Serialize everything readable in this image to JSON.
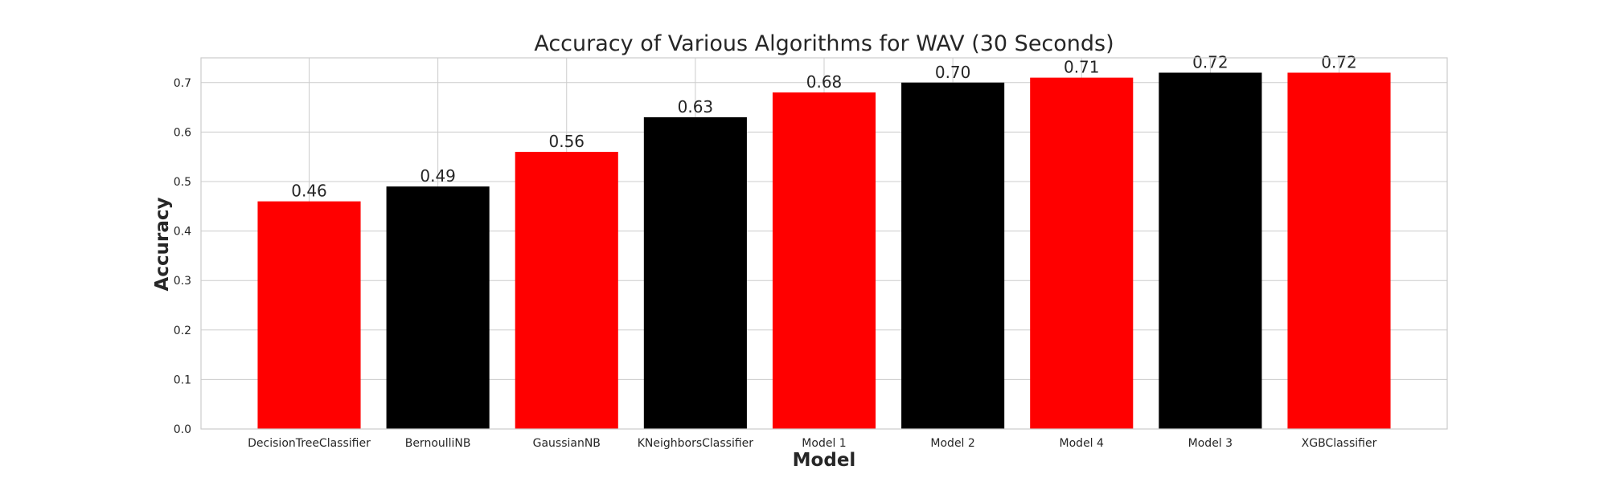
{
  "chart_data": {
    "type": "bar",
    "title": "Accuracy of Various Algorithms for WAV (30 Seconds)",
    "xlabel": "Model",
    "ylabel": "Accuracy",
    "ylim": [
      0,
      0.75
    ],
    "yticks": [
      "0.0",
      "0.1",
      "0.2",
      "0.3",
      "0.4",
      "0.5",
      "0.6",
      "0.7"
    ],
    "grid": true,
    "categories": [
      "DecisionTreeClassifier",
      "BernoulliNB",
      "GaussianNB",
      "KNeighborsClassifier",
      "Model 1",
      "Model 2",
      "Model 4",
      "Model 3",
      "XGBClassifier"
    ],
    "values": [
      0.46,
      0.49,
      0.56,
      0.63,
      0.68,
      0.7,
      0.71,
      0.72,
      0.72
    ],
    "value_labels": [
      "0.46",
      "0.49",
      "0.56",
      "0.63",
      "0.68",
      "0.70",
      "0.71",
      "0.72",
      "0.72"
    ],
    "colors": [
      "#ff0000",
      "#000000",
      "#ff0000",
      "#000000",
      "#ff0000",
      "#000000",
      "#ff0000",
      "#000000",
      "#ff0000"
    ]
  }
}
